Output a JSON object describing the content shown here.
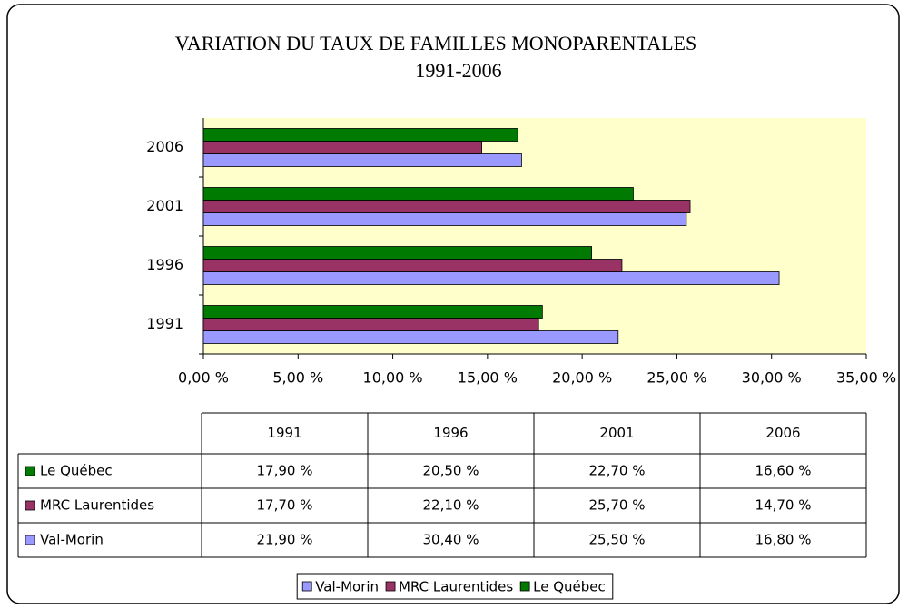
{
  "chart_data": {
    "type": "bar",
    "orientation": "horizontal",
    "title": "VARIATION DU TAUX DE FAMILLES MONOPARENTALES",
    "subtitle": "1991-2006",
    "categories": [
      "1991",
      "1996",
      "2001",
      "2006"
    ],
    "series": [
      {
        "name": "Val-Morin",
        "color": "#9999ff",
        "values": [
          21.9,
          30.4,
          25.5,
          16.8
        ],
        "value_labels": [
          "21,90 %",
          "30,40 %",
          "25,50 %",
          "16,80 %"
        ]
      },
      {
        "name": "MRC Laurentides",
        "color": "#993366",
        "values": [
          17.7,
          22.1,
          25.7,
          14.7
        ],
        "value_labels": [
          "17,70 %",
          "22,10 %",
          "25,70 %",
          "14,70 %"
        ]
      },
      {
        "name": "Le Québec",
        "color": "#007a00",
        "values": [
          17.9,
          20.5,
          22.7,
          16.6
        ],
        "value_labels": [
          "17,90 %",
          "20,50 %",
          "22,70 %",
          "16,60 %"
        ]
      }
    ],
    "xlim": [
      0,
      35
    ],
    "xticks": [
      {
        "value": 0,
        "label": "0,00 %"
      },
      {
        "value": 5,
        "label": "5,00 %"
      },
      {
        "value": 10,
        "label": "10,00 %"
      },
      {
        "value": 15,
        "label": "15,00 %"
      },
      {
        "value": 20,
        "label": "20,00 %"
      },
      {
        "value": 25,
        "label": "25,00 %"
      },
      {
        "value": 30,
        "label": "30,00 %"
      },
      {
        "value": 35,
        "label": "35,00 %"
      }
    ],
    "plot_background": "#ffffcc",
    "legend": "bottom",
    "data_table": true
  }
}
